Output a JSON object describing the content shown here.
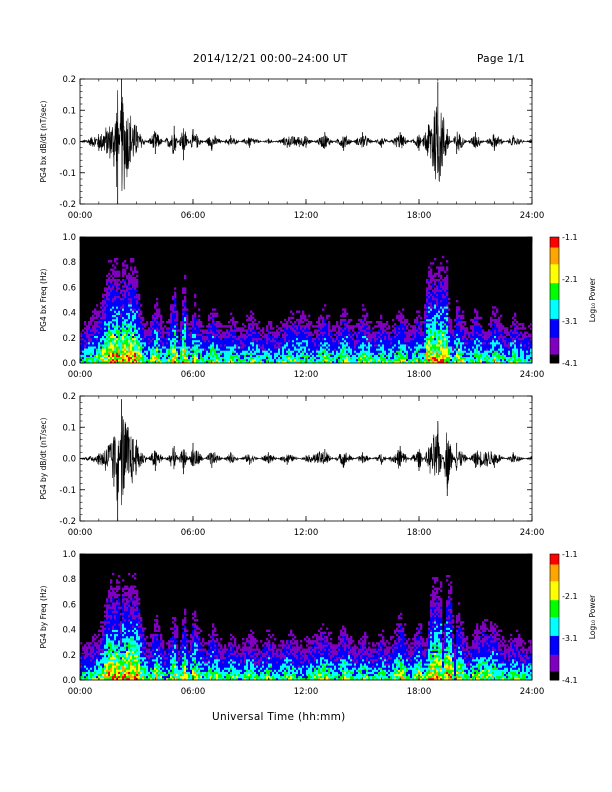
{
  "header": {
    "title": "2014/12/21  00:00–24:00 UT",
    "page": "Page 1/1"
  },
  "footer": {
    "xlabel": "Universal Time (hh:mm)"
  },
  "colorbar": {
    "label": "Log₁₀ Power",
    "ticks": [
      "-1.1",
      "-2.1",
      "-3.1",
      "-4.1"
    ],
    "colors": [
      "#ff0000",
      "#ffa500",
      "#ffff00",
      "#00ff00",
      "#00ffff",
      "#0000ff",
      "#8000c0",
      "#000000"
    ]
  },
  "chart_data": [
    {
      "type": "line",
      "ylabel": "PG4 bx dB/dt (nT/sec)",
      "xlim": [
        0,
        24
      ],
      "ylim": [
        -0.2,
        0.2
      ],
      "x_ticks": [
        "00:00",
        "06:00",
        "12:00",
        "18:00",
        "24:00"
      ],
      "y_ticks": [
        "0.2",
        "0.1",
        "0.0",
        "-0.1",
        "-0.2"
      ],
      "x": [
        0.0,
        1.0,
        1.8,
        2.0,
        2.2,
        3.0,
        4.0,
        5.0,
        5.5,
        6.0,
        7.0,
        8.0,
        9.0,
        10.0,
        11.0,
        12.0,
        13.0,
        14.0,
        15.0,
        16.0,
        17.0,
        18.0,
        19.0,
        19.5,
        20.0,
        21.0,
        22.0,
        23.0,
        24.0
      ],
      "y": [
        0.0,
        -0.03,
        -0.08,
        -0.2,
        0.2,
        0.05,
        -0.04,
        0.05,
        -0.06,
        0.04,
        -0.03,
        0.02,
        -0.02,
        0.01,
        -0.02,
        -0.02,
        0.03,
        -0.03,
        0.03,
        -0.02,
        0.03,
        -0.03,
        0.19,
        0.04,
        -0.04,
        0.03,
        -0.03,
        0.02,
        -0.01
      ]
    },
    {
      "type": "heatmap",
      "ylabel": "PG4 bx Freq (Hz)",
      "xlim": [
        0,
        24
      ],
      "ylim": [
        0.0,
        1.0
      ],
      "x_ticks": [
        "00:00",
        "06:00",
        "12:00",
        "18:00",
        "24:00"
      ],
      "y_ticks": [
        "1.0",
        "0.8",
        "0.6",
        "0.4",
        "0.2",
        "0.0"
      ],
      "zlabel": "Log₁₀ Power",
      "zlim": [
        -4.1,
        -1.1
      ],
      "z_ticks": [
        "-1.1",
        "-2.1",
        "-3.1",
        "-4.1"
      ]
    },
    {
      "type": "line",
      "ylabel": "PG4 by dB/dt (nT/sec)",
      "xlim": [
        0,
        24
      ],
      "ylim": [
        -0.2,
        0.2
      ],
      "x_ticks": [
        "00:00",
        "06:00",
        "12:00",
        "18:00",
        "24:00"
      ],
      "y_ticks": [
        "0.2",
        "0.1",
        "0.0",
        "-0.1",
        "-0.2"
      ],
      "x": [
        0.0,
        1.0,
        1.8,
        2.0,
        2.2,
        3.0,
        4.0,
        5.0,
        5.5,
        6.0,
        7.0,
        8.0,
        9.0,
        10.0,
        11.0,
        12.0,
        13.0,
        14.0,
        15.0,
        16.0,
        17.0,
        18.0,
        19.0,
        19.5,
        20.0,
        21.0,
        22.0,
        23.0,
        24.0
      ],
      "y": [
        0.0,
        -0.02,
        -0.09,
        -0.2,
        0.19,
        0.06,
        -0.04,
        0.04,
        -0.05,
        0.05,
        -0.03,
        0.02,
        -0.02,
        0.02,
        -0.02,
        0.01,
        0.03,
        -0.03,
        0.02,
        -0.02,
        0.04,
        -0.04,
        0.12,
        -0.12,
        0.05,
        -0.03,
        -0.03,
        0.02,
        -0.01
      ]
    },
    {
      "type": "heatmap",
      "ylabel": "PG4 by Freq (Hz)",
      "xlim": [
        0,
        24
      ],
      "ylim": [
        0.0,
        1.0
      ],
      "x_ticks": [
        "00:00",
        "06:00",
        "12:00",
        "18:00",
        "24:00"
      ],
      "y_ticks": [
        "1.0",
        "0.8",
        "0.6",
        "0.4",
        "0.2",
        "0.0"
      ],
      "zlabel": "Log₁₀ Power",
      "zlim": [
        -4.1,
        -1.1
      ],
      "z_ticks": [
        "-1.1",
        "-2.1",
        "-3.1",
        "-4.1"
      ]
    }
  ]
}
